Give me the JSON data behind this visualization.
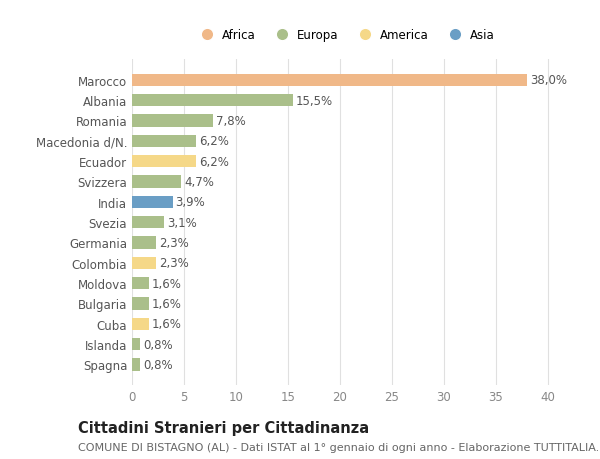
{
  "countries": [
    "Marocco",
    "Albania",
    "Romania",
    "Macedonia d/N.",
    "Ecuador",
    "Svizzera",
    "India",
    "Svezia",
    "Germania",
    "Colombia",
    "Moldova",
    "Bulgaria",
    "Cuba",
    "Islanda",
    "Spagna"
  ],
  "values": [
    38.0,
    15.5,
    7.8,
    6.2,
    6.2,
    4.7,
    3.9,
    3.1,
    2.3,
    2.3,
    1.6,
    1.6,
    1.6,
    0.8,
    0.8
  ],
  "categories": [
    "Africa",
    "Europa",
    "America",
    "Asia"
  ],
  "continent": [
    "Africa",
    "Europa",
    "Europa",
    "Europa",
    "America",
    "Europa",
    "Asia",
    "Europa",
    "Europa",
    "America",
    "Europa",
    "Europa",
    "America",
    "Europa",
    "Europa"
  ],
  "colors": {
    "Africa": "#F0B888",
    "Europa": "#AABF8A",
    "America": "#F5D888",
    "Asia": "#6A9EC5"
  },
  "title": "Cittadini Stranieri per Cittadinanza",
  "subtitle": "COMUNE DI BISTAGNO (AL) - Dati ISTAT al 1° gennaio di ogni anno - Elaborazione TUTTITALIA.IT",
  "xlim": [
    0,
    41
  ],
  "xticks": [
    0,
    5,
    10,
    15,
    20,
    25,
    30,
    35,
    40
  ],
  "background_color": "#ffffff",
  "plot_bg_color": "#ffffff",
  "bar_height": 0.6,
  "label_fontsize": 8.5,
  "tick_fontsize": 8.5,
  "title_fontsize": 10.5,
  "subtitle_fontsize": 8.0,
  "grid_color": "#e0e0e0"
}
